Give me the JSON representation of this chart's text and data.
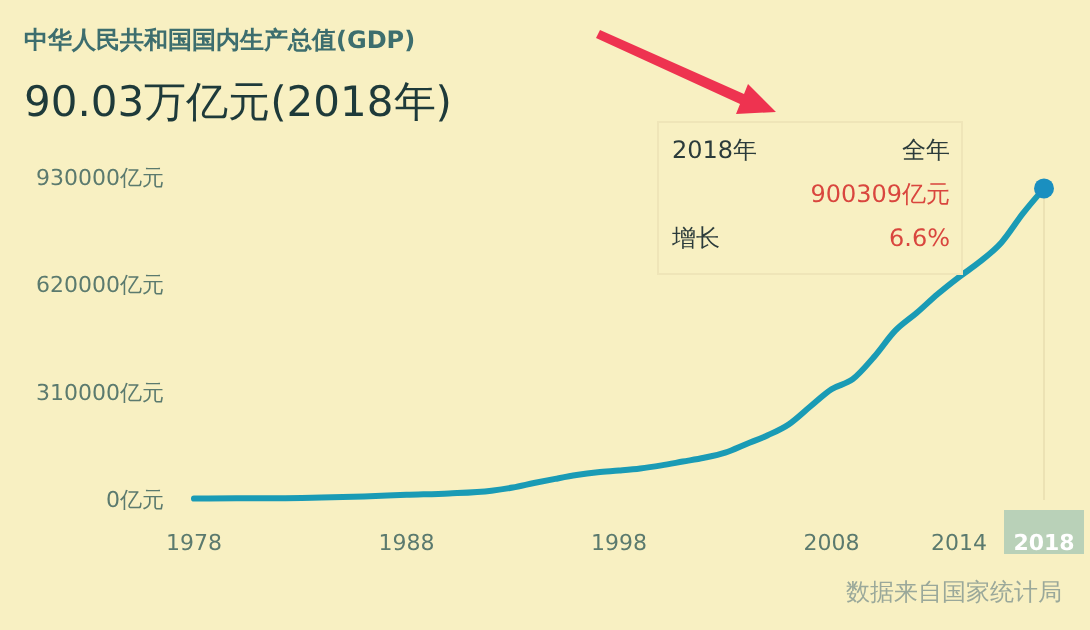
{
  "chart_data": {
    "type": "line",
    "title": "中华人民共和国国内生产总值(GDP)",
    "subtitle": "90.03万亿元(2018年)",
    "x": [
      1978,
      1980,
      1982,
      1984,
      1986,
      1988,
      1990,
      1992,
      1993,
      1994,
      1995,
      1996,
      1997,
      1998,
      1999,
      2000,
      2001,
      2002,
      2003,
      2004,
      2005,
      2006,
      2007,
      2008,
      2009,
      2010,
      2011,
      2012,
      2013,
      2014,
      2015,
      2016,
      2017,
      2018
    ],
    "series": [
      {
        "color": "#1a9bb5",
        "values": [
          4000,
          5000,
          5000,
          7000,
          10000,
          15000,
          19000,
          27000,
          36000,
          49000,
          61000,
          72000,
          80000,
          85000,
          91000,
          100000,
          111000,
          122000,
          137000,
          162000,
          187000,
          219000,
          270000,
          320000,
          349000,
          413000,
          489000,
          540000,
          595000,
          644000,
          689000,
          744000,
          827000,
          900000
        ]
      }
    ],
    "xlim": [
      1978,
      2018
    ],
    "xticks": [
      1978,
      1988,
      1998,
      2008,
      2014,
      2018
    ],
    "ylim": [
      0,
      930000
    ],
    "yticks": [
      {
        "value": 0,
        "label": "0亿元"
      },
      {
        "value": 310000,
        "label": "310000亿元"
      },
      {
        "value": 620000,
        "label": "620000亿元"
      },
      {
        "value": 930000,
        "label": "930000亿元"
      }
    ],
    "grid": false,
    "marker": "none",
    "line_style": "solid",
    "annotations": [
      "2018年",
      "全年",
      "900309亿元",
      "增长",
      "6.6%",
      "数据来自国家统计局"
    ]
  }
}
